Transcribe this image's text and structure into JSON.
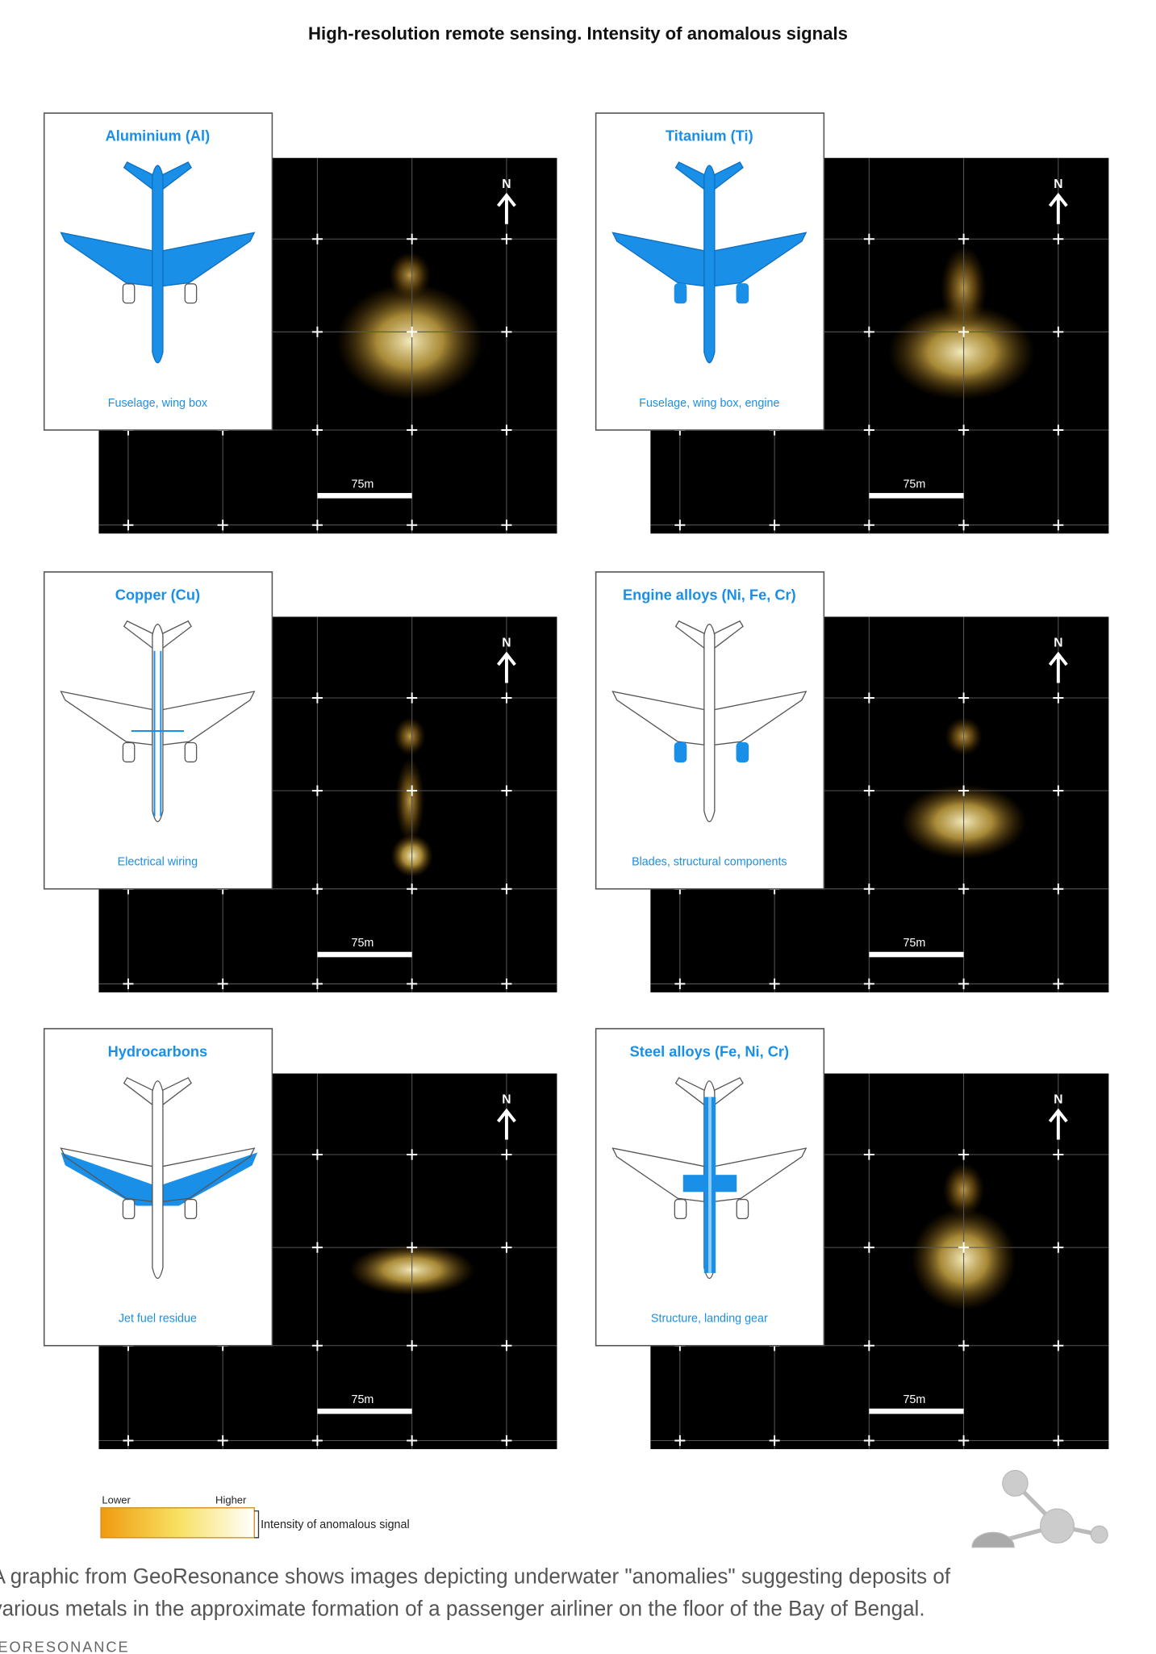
{
  "title": "High-resolution remote sensing. Intensity of anomalous signals",
  "panels": [
    {
      "element": "Aluminium (Al)",
      "description": "Fuselage, wing box",
      "north": "N",
      "scale": "75m"
    },
    {
      "element": "Titanium (Ti)",
      "description": "Fuselage, wing box, engine",
      "north": "N",
      "scale": "75m"
    },
    {
      "element": "Copper (Cu)",
      "description": "Electrical wiring",
      "north": "N",
      "scale": "75m"
    },
    {
      "element": "Engine alloys (Ni, Fe, Cr)",
      "description": "Blades, structural components",
      "north": "N",
      "scale": "75m"
    },
    {
      "element": "Hydrocarbons",
      "description": "Jet fuel residue",
      "north": "N",
      "scale": "75m"
    },
    {
      "element": "Steel alloys (Fe, Ni, Cr)",
      "description": "Structure, landing gear",
      "north": "N",
      "scale": "75m"
    }
  ],
  "legend": {
    "lower": "Lower",
    "higher": "Higher",
    "label": "Intensity of anomalous signal"
  },
  "caption": [
    "A graphic from GeoResonance shows images depicting underwater \"anomalies\" suggesting deposits of",
    "various metals in the approximate formation of a passenger airliner on the floor of the Bay of Bengal."
  ],
  "credit": "EORESONANCE"
}
